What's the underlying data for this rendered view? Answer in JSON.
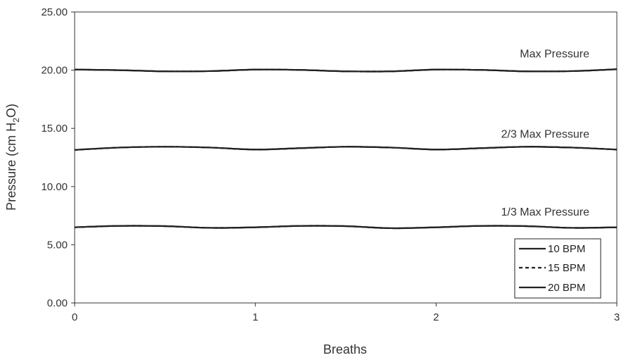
{
  "chart_data": {
    "type": "line",
    "title": "",
    "xlabel": "Breaths",
    "ylabel_main": "Pressure (cm H",
    "ylabel_sub": "2",
    "ylabel_end": "O)",
    "xlim": [
      0,
      3
    ],
    "ylim": [
      0,
      25
    ],
    "x_ticks": [
      "0",
      "1",
      "2",
      "3"
    ],
    "y_ticks": [
      "0.00",
      "5.00",
      "10.00",
      "15.00",
      "20.00",
      "25.00"
    ],
    "grid": false,
    "legend_position": "bottom-right",
    "annotations": [
      {
        "text": "Max Pressure",
        "x": 2.8,
        "y": 21.4
      },
      {
        "text": "2/3 Max Pressure",
        "x": 2.8,
        "y": 14.5
      },
      {
        "text": "1/3 Max Pressure",
        "x": 2.8,
        "y": 7.8
      }
    ],
    "series": [
      {
        "name": "10 BPM",
        "style": "solid",
        "x": [
          0,
          0.25,
          0.5,
          0.75,
          1.0,
          1.25,
          1.5,
          1.75,
          2.0,
          2.25,
          2.5,
          2.75,
          3.0
        ],
        "curves": [
          [
            20.05,
            20.0,
            19.9,
            19.92,
            20.05,
            20.02,
            19.9,
            19.9,
            20.05,
            20.02,
            19.9,
            19.92,
            20.08
          ],
          [
            13.15,
            13.35,
            13.42,
            13.35,
            13.18,
            13.3,
            13.42,
            13.35,
            13.18,
            13.3,
            13.42,
            13.35,
            13.18
          ],
          [
            6.5,
            6.62,
            6.6,
            6.45,
            6.5,
            6.62,
            6.6,
            6.42,
            6.5,
            6.62,
            6.6,
            6.45,
            6.5
          ]
        ]
      },
      {
        "name": "15 BPM",
        "style": "dashed",
        "x": [
          0,
          0.25,
          0.5,
          0.75,
          1.0,
          1.25,
          1.5,
          1.75,
          2.0,
          2.25,
          2.5,
          2.75,
          3.0
        ],
        "curves": [
          [
            20.05,
            20.0,
            19.9,
            19.92,
            20.05,
            20.02,
            19.9,
            19.9,
            20.05,
            20.02,
            19.9,
            19.92,
            20.08
          ],
          [
            13.15,
            13.35,
            13.42,
            13.35,
            13.18,
            13.3,
            13.42,
            13.35,
            13.18,
            13.3,
            13.42,
            13.35,
            13.18
          ],
          [
            6.5,
            6.62,
            6.6,
            6.45,
            6.5,
            6.62,
            6.6,
            6.42,
            6.5,
            6.62,
            6.6,
            6.45,
            6.5
          ]
        ]
      },
      {
        "name": "20 BPM",
        "style": "solid",
        "x": [
          0,
          0.25,
          0.5,
          0.75,
          1.0,
          1.25,
          1.5,
          1.75,
          2.0,
          2.25,
          2.5,
          2.75,
          3.0
        ],
        "curves": [
          [
            20.05,
            20.0,
            19.9,
            19.92,
            20.05,
            20.02,
            19.9,
            19.9,
            20.05,
            20.02,
            19.9,
            19.92,
            20.08
          ],
          [
            13.15,
            13.35,
            13.42,
            13.35,
            13.18,
            13.3,
            13.42,
            13.35,
            13.18,
            13.3,
            13.42,
            13.35,
            13.18
          ],
          [
            6.5,
            6.62,
            6.6,
            6.45,
            6.5,
            6.62,
            6.6,
            6.42,
            6.5,
            6.62,
            6.6,
            6.45,
            6.5
          ]
        ]
      }
    ],
    "colors": {
      "line": "#222222",
      "axis": "#333333",
      "text": "#333333"
    }
  }
}
